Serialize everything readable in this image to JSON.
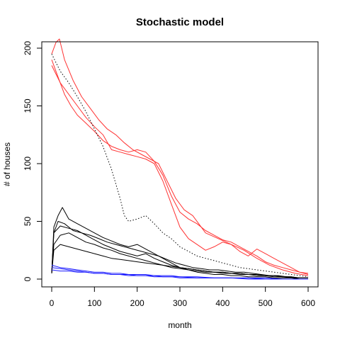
{
  "chart_data": {
    "type": "line",
    "title": "Stochastic model",
    "xlabel": "month",
    "ylabel": "# of houses",
    "xlim": [
      0,
      600
    ],
    "ylim": [
      0,
      200
    ],
    "xticks": [
      0,
      100,
      200,
      300,
      400,
      500,
      600
    ],
    "yticks": [
      0,
      50,
      100,
      150,
      200
    ],
    "grid": false,
    "legend": "none",
    "colors": {
      "red": "#ff3333",
      "black": "#000000",
      "blue": "#1a1aff"
    },
    "series": [
      {
        "color": "red",
        "style": "solid",
        "x": [
          0,
          10,
          18,
          30,
          50,
          70,
          90,
          110,
          130,
          150,
          170,
          190,
          210,
          230,
          250,
          270,
          290,
          310,
          330,
          360,
          390,
          420,
          450,
          480,
          510,
          540,
          570,
          600
        ],
        "y": [
          195,
          205,
          208,
          190,
          172,
          158,
          148,
          138,
          130,
          125,
          118,
          112,
          108,
          104,
          100,
          85,
          70,
          60,
          55,
          40,
          35,
          30,
          25,
          18,
          12,
          8,
          5,
          3
        ]
      },
      {
        "color": "red",
        "style": "solid",
        "x": [
          0,
          15,
          30,
          45,
          60,
          80,
          100,
          120,
          140,
          160,
          180,
          200,
          220,
          240,
          260,
          280,
          300,
          320,
          340,
          360,
          380,
          400,
          420,
          440,
          460,
          480,
          500,
          520,
          540,
          560,
          580,
          600
        ],
        "y": [
          190,
          175,
          160,
          150,
          142,
          135,
          128,
          120,
          115,
          112,
          110,
          112,
          110,
          102,
          90,
          72,
          58,
          52,
          48,
          42,
          38,
          34,
          32,
          28,
          24,
          20,
          15,
          12,
          10,
          8,
          6,
          5
        ]
      },
      {
        "color": "red",
        "style": "solid",
        "x": [
          0,
          20,
          40,
          60,
          80,
          100,
          120,
          140,
          160,
          180,
          200,
          220,
          240,
          260,
          280,
          300,
          320,
          340,
          360,
          380,
          400,
          420,
          440,
          460,
          480,
          500,
          520,
          540,
          560,
          580,
          600
        ],
        "y": [
          185,
          170,
          160,
          150,
          140,
          132,
          125,
          112,
          110,
          108,
          106,
          104,
          100,
          85,
          65,
          45,
          35,
          30,
          25,
          28,
          32,
          30,
          24,
          20,
          26,
          22,
          18,
          14,
          10,
          6,
          4
        ]
      },
      {
        "color": "black",
        "style": "dotted",
        "x": [
          0,
          20,
          40,
          60,
          80,
          100,
          120,
          140,
          160,
          170,
          180,
          200,
          220,
          240,
          260,
          280,
          300,
          320,
          340,
          360,
          380,
          400,
          420,
          440,
          460,
          480,
          500,
          520,
          540,
          560,
          580,
          600
        ],
        "y": [
          195,
          180,
          170,
          158,
          145,
          130,
          115,
          95,
          70,
          55,
          50,
          52,
          55,
          48,
          40,
          35,
          28,
          24,
          20,
          18,
          16,
          14,
          12,
          10,
          9,
          8,
          7,
          6,
          5,
          4,
          3,
          2
        ]
      },
      {
        "color": "black",
        "style": "solid",
        "x": [
          0,
          5,
          15,
          30,
          50,
          70,
          90,
          110,
          130,
          150,
          170,
          190,
          210,
          230,
          250,
          270,
          290,
          310,
          330,
          350,
          370,
          390,
          410,
          430,
          450,
          470,
          490,
          510,
          530,
          550,
          570,
          600
        ],
        "y": [
          5,
          40,
          50,
          48,
          42,
          40,
          38,
          35,
          32,
          30,
          28,
          26,
          24,
          22,
          20,
          17,
          14,
          12,
          10,
          9,
          8,
          8,
          7,
          6,
          6,
          5,
          4,
          3,
          3,
          2,
          1,
          1
        ]
      },
      {
        "color": "black",
        "style": "solid",
        "x": [
          0,
          5,
          15,
          25,
          40,
          60,
          80,
          100,
          120,
          140,
          160,
          180,
          200,
          220,
          240,
          260,
          280,
          300,
          320,
          340,
          360,
          380,
          400,
          420,
          440,
          460,
          480,
          500,
          520,
          540,
          560,
          580,
          600
        ],
        "y": [
          5,
          45,
          55,
          62,
          52,
          48,
          44,
          40,
          36,
          33,
          30,
          28,
          30,
          26,
          22,
          18,
          14,
          10,
          8,
          6,
          5,
          4,
          4,
          3,
          3,
          2,
          2,
          2,
          1,
          1,
          1,
          0,
          0
        ]
      },
      {
        "color": "black",
        "style": "solid",
        "x": [
          0,
          5,
          20,
          40,
          60,
          80,
          100,
          120,
          140,
          160,
          180,
          200,
          220,
          240,
          260,
          280,
          300,
          320,
          340,
          360,
          380,
          400,
          420,
          440,
          460,
          480,
          500,
          520,
          540,
          560,
          580,
          600
        ],
        "y": [
          5,
          30,
          38,
          40,
          36,
          32,
          30,
          27,
          25,
          22,
          20,
          18,
          16,
          14,
          12,
          10,
          9,
          8,
          7,
          6,
          6,
          5,
          5,
          4,
          4,
          3,
          3,
          2,
          2,
          1,
          1,
          1
        ]
      },
      {
        "color": "black",
        "style": "solid",
        "x": [
          0,
          5,
          20,
          40,
          60,
          80,
          100,
          120,
          140,
          160,
          180,
          200,
          220,
          240,
          260,
          280,
          300,
          320,
          340,
          360,
          380,
          400,
          420,
          440,
          460,
          480,
          500,
          520,
          540,
          560,
          580,
          600
        ],
        "y": [
          5,
          25,
          30,
          28,
          26,
          24,
          22,
          20,
          18,
          17,
          16,
          15,
          14,
          13,
          12,
          11,
          10,
          9,
          8,
          7,
          6,
          6,
          5,
          5,
          4,
          4,
          3,
          3,
          2,
          2,
          1,
          1
        ]
      },
      {
        "color": "black",
        "style": "solid",
        "x": [
          0,
          5,
          20,
          40,
          60,
          80,
          100,
          120,
          140,
          160,
          180,
          200,
          220,
          240,
          260,
          280,
          300,
          320,
          340,
          360,
          380,
          400,
          420,
          440,
          460,
          480,
          500,
          520,
          540,
          560,
          580,
          600
        ],
        "y": [
          5,
          40,
          46,
          44,
          42,
          38,
          34,
          30,
          27,
          24,
          22,
          20,
          22,
          18,
          15,
          12,
          10,
          9,
          8,
          7,
          6,
          6,
          5,
          5,
          4,
          4,
          3,
          3,
          2,
          2,
          1,
          1
        ]
      },
      {
        "color": "blue",
        "style": "solid",
        "x": [
          0,
          20,
          40,
          60,
          80,
          100,
          120,
          140,
          160,
          180,
          200,
          220,
          240,
          260,
          280,
          300,
          340,
          380,
          420,
          460,
          500,
          540,
          580,
          600
        ],
        "y": [
          12,
          10,
          9,
          8,
          7,
          6,
          6,
          5,
          5,
          4,
          4,
          4,
          3,
          3,
          3,
          2,
          2,
          1,
          1,
          1,
          1,
          0,
          0,
          0
        ]
      },
      {
        "color": "blue",
        "style": "solid",
        "x": [
          0,
          20,
          40,
          60,
          80,
          100,
          120,
          140,
          160,
          180,
          200,
          220,
          240,
          260,
          280,
          300,
          340,
          380,
          420,
          460,
          500,
          540,
          580,
          600
        ],
        "y": [
          10,
          9,
          8,
          7,
          6,
          5,
          5,
          4,
          4,
          4,
          3,
          3,
          3,
          2,
          2,
          2,
          1,
          1,
          1,
          1,
          0,
          0,
          0,
          0
        ]
      },
      {
        "color": "blue",
        "style": "solid",
        "x": [
          0,
          20,
          40,
          60,
          80,
          100,
          120,
          140,
          160,
          180,
          200,
          220,
          240,
          260,
          280,
          300,
          340,
          380,
          420,
          460,
          500,
          540,
          580,
          600
        ],
        "y": [
          8,
          7,
          7,
          6,
          6,
          5,
          5,
          4,
          4,
          3,
          3,
          3,
          2,
          2,
          2,
          1,
          1,
          1,
          1,
          0,
          0,
          0,
          0,
          0
        ]
      }
    ]
  }
}
